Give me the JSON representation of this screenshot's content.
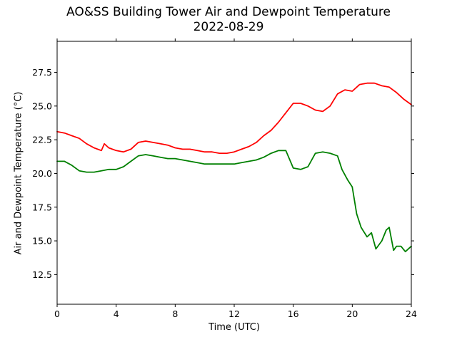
{
  "chart_data": {
    "type": "line",
    "title": "AO&SS Building Tower Air and Dewpoint Temperature",
    "subtitle": "2022-08-29",
    "xlabel": "Time (UTC)",
    "ylabel": "Air and Dewpoint Temperature (°C)",
    "xlim": [
      0,
      24
    ],
    "ylim": [
      10.3,
      29.8
    ],
    "x_ticks": [
      0,
      4,
      8,
      12,
      16,
      20,
      24
    ],
    "y_ticks": [
      12.5,
      15.0,
      17.5,
      20.0,
      22.5,
      25.0,
      27.5
    ],
    "grid": false,
    "series": [
      {
        "color": "#ff0000",
        "x": [
          0,
          0.5,
          1,
          1.5,
          2,
          2.5,
          3,
          3.2,
          3.5,
          4,
          4.5,
          5,
          5.5,
          6,
          6.5,
          7,
          7.5,
          8,
          8.5,
          9,
          9.5,
          10,
          10.5,
          11,
          11.5,
          12,
          12.5,
          13,
          13.5,
          14,
          14.5,
          15,
          15.5,
          16,
          16.5,
          17,
          17.5,
          18,
          18.5,
          19,
          19.5,
          20,
          20.5,
          21,
          21.5,
          22,
          22.5,
          23,
          23.5,
          24
        ],
        "y": [
          23.1,
          23.0,
          22.8,
          22.6,
          22.2,
          21.9,
          21.7,
          22.2,
          21.9,
          21.7,
          21.6,
          21.8,
          22.3,
          22.4,
          22.3,
          22.2,
          22.1,
          21.9,
          21.8,
          21.8,
          21.7,
          21.6,
          21.6,
          21.5,
          21.5,
          21.6,
          21.8,
          22.0,
          22.3,
          22.8,
          23.2,
          23.8,
          24.5,
          25.2,
          25.2,
          25.0,
          24.7,
          24.6,
          25.0,
          25.9,
          26.2,
          26.1,
          26.6,
          26.7,
          26.7,
          26.5,
          26.4,
          26.0,
          25.5,
          25.1
        ]
      },
      {
        "color": "#008000",
        "x": [
          0,
          0.5,
          1,
          1.5,
          2,
          2.5,
          3,
          3.5,
          4,
          4.5,
          5,
          5.5,
          6,
          6.5,
          7,
          7.5,
          8,
          8.5,
          9,
          9.5,
          10,
          10.5,
          11,
          11.5,
          12,
          12.5,
          13,
          13.5,
          14,
          14.5,
          15,
          15.5,
          16,
          16.5,
          17,
          17.5,
          18,
          18.5,
          19,
          19.3,
          19.7,
          20,
          20.3,
          20.6,
          21,
          21.3,
          21.6,
          22,
          22.3,
          22.5,
          22.8,
          23,
          23.3,
          23.6,
          24
        ],
        "y": [
          20.9,
          20.9,
          20.6,
          20.2,
          20.1,
          20.1,
          20.2,
          20.3,
          20.3,
          20.5,
          20.9,
          21.3,
          21.4,
          21.3,
          21.2,
          21.1,
          21.1,
          21.0,
          20.9,
          20.8,
          20.7,
          20.7,
          20.7,
          20.7,
          20.7,
          20.8,
          20.9,
          21.0,
          21.2,
          21.5,
          21.7,
          21.7,
          20.4,
          20.3,
          20.5,
          21.5,
          21.6,
          21.5,
          21.3,
          20.3,
          19.5,
          19.0,
          17.0,
          16.0,
          15.3,
          15.6,
          14.4,
          15.0,
          15.8,
          16.0,
          14.3,
          14.6,
          14.6,
          14.2,
          14.6
        ]
      }
    ]
  }
}
